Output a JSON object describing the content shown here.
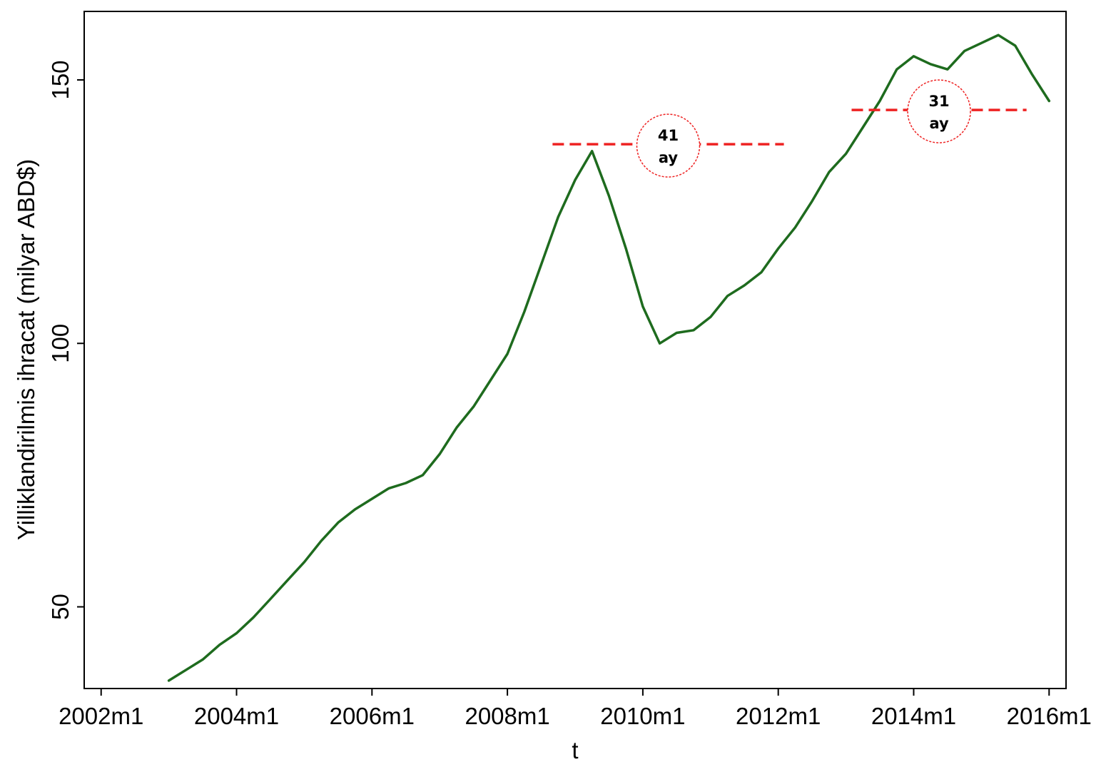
{
  "chart_data": {
    "type": "line",
    "xlabel": "t",
    "ylabel": "Yilliklandirilmis ihracat (milyar ABD$)",
    "x_ticks": [
      "2002m1",
      "2004m1",
      "2006m1",
      "2008m1",
      "2010m1",
      "2012m1",
      "2014m1",
      "2016m1"
    ],
    "y_ticks": [
      "50",
      "100",
      "150"
    ],
    "xlim": [
      "2001m10",
      "2016m4"
    ],
    "ylim": [
      34.5,
      163
    ],
    "series": [
      {
        "color": "#1e6b1e",
        "points": [
          [
            "2003m1",
            36.0
          ],
          [
            "2003m4",
            38.0
          ],
          [
            "2003m7",
            40.0
          ],
          [
            "2003m10",
            42.8
          ],
          [
            "2004m1",
            45.0
          ],
          [
            "2004m4",
            48.0
          ],
          [
            "2004m7",
            51.5
          ],
          [
            "2004m10",
            55.0
          ],
          [
            "2005m1",
            58.5
          ],
          [
            "2005m4",
            62.5
          ],
          [
            "2005m7",
            66.0
          ],
          [
            "2005m10",
            68.5
          ],
          [
            "2006m1",
            70.5
          ],
          [
            "2006m4",
            72.5
          ],
          [
            "2006m7",
            73.5
          ],
          [
            "2006m10",
            75.0
          ],
          [
            "2007m1",
            79.0
          ],
          [
            "2007m4",
            84.0
          ],
          [
            "2007m7",
            88.0
          ],
          [
            "2007m10",
            93.0
          ],
          [
            "2008m1",
            98.0
          ],
          [
            "2008m4",
            106.0
          ],
          [
            "2008m7",
            115.0
          ],
          [
            "2008m10",
            124.0
          ],
          [
            "2009m1",
            131.0
          ],
          [
            "2009m4",
            136.5
          ],
          [
            "2009m7",
            128.0
          ],
          [
            "2009m10",
            118.0
          ],
          [
            "2010m1",
            107.0
          ],
          [
            "2010m4",
            100.0
          ],
          [
            "2010m7",
            102.0
          ],
          [
            "2010m10",
            102.5
          ],
          [
            "2011m1",
            105.0
          ],
          [
            "2011m4",
            109.0
          ],
          [
            "2011m7",
            111.0
          ],
          [
            "2011m10",
            113.5
          ],
          [
            "2012m1",
            118.0
          ],
          [
            "2012m4",
            122.0
          ],
          [
            "2012m7",
            127.0
          ],
          [
            "2012m10",
            132.5
          ],
          [
            "2013m1",
            136.0
          ],
          [
            "2013m4",
            141.0
          ],
          [
            "2013m7",
            146.0
          ],
          [
            "2013m10",
            152.0
          ],
          [
            "2014m1",
            154.5
          ],
          [
            "2014m4",
            153.0
          ],
          [
            "2014m7",
            152.0
          ],
          [
            "2014m10",
            155.5
          ],
          [
            "2015m1",
            157.0
          ],
          [
            "2015m4",
            158.5
          ],
          [
            "2015m7",
            156.5
          ],
          [
            "2015m10",
            151.0
          ],
          [
            "2016m1",
            146.0
          ]
        ]
      }
    ],
    "annotations": [
      {
        "label_line1": "41",
        "label_line2": "ay",
        "y": 137.8,
        "x_start": "2008m9",
        "x_end": "2012m2",
        "color": "#ee2222"
      },
      {
        "label_line1": "31",
        "label_line2": "ay",
        "y": 144.3,
        "x_start": "2013m2",
        "x_end": "2015m9",
        "color": "#ee2222"
      }
    ],
    "grid": false,
    "legend": "none"
  }
}
